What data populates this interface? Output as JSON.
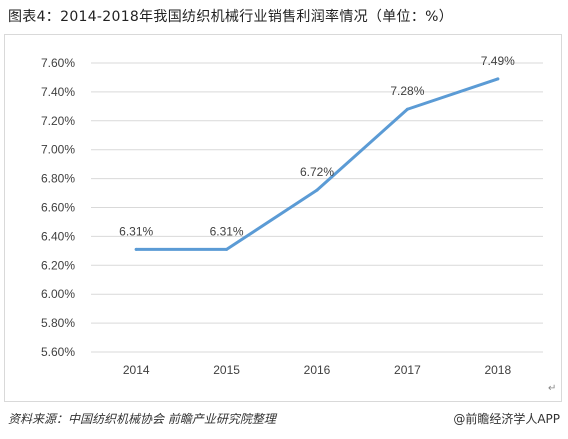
{
  "title": "图表4：2014-2018年我国纺织机械行业销售利润率情况（单位：%）",
  "source": "资料来源：中国纺织机械协会 前瞻产业研究院整理",
  "credit": "@前瞻经济学人APP",
  "line_color": "#5b9bd5",
  "chart_data": {
    "type": "line",
    "title": "图表4：2014-2018年我国纺织机械行业销售利润率情况（单位：%）",
    "categories": [
      "2014",
      "2015",
      "2016",
      "2017",
      "2018"
    ],
    "series": [
      {
        "values": [
          6.31,
          6.31,
          6.72,
          7.28,
          7.49
        ]
      }
    ],
    "data_labels": [
      "6.31%",
      "6.31%",
      "6.72%",
      "7.28%",
      "7.49%"
    ],
    "ylim": [
      5.6,
      7.6
    ],
    "y_ticks": [
      5.6,
      5.8,
      6.0,
      6.2,
      6.4,
      6.6,
      6.8,
      7.0,
      7.2,
      7.4,
      7.6
    ],
    "y_tick_labels": [
      "5.60%",
      "5.80%",
      "6.00%",
      "6.20%",
      "6.40%",
      "6.60%",
      "6.80%",
      "7.00%",
      "7.20%",
      "7.40%",
      "7.60%"
    ],
    "grid": true,
    "legend": "none"
  }
}
